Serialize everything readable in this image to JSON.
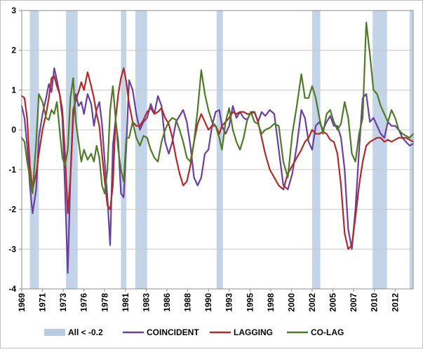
{
  "chart_data": {
    "type": "line",
    "title": "",
    "xlabel": "",
    "ylabel": "",
    "ylim": [
      -4,
      3
    ],
    "xlim": [
      1969.0,
      2012.4
    ],
    "y_ticks": [
      "3",
      "2",
      "1",
      "0",
      "-1",
      "-2",
      "-3",
      "-4"
    ],
    "x_ticks": [
      "1969",
      "1971",
      "1973",
      "1976",
      "1978",
      "1981",
      "1983",
      "1986",
      "1988",
      "1990",
      "1993",
      "1995",
      "1998",
      "2000",
      "2002",
      "2005",
      "2007",
      "2010",
      "2012"
    ],
    "x_tick_values": [
      1969.0,
      1971.3,
      1973.6,
      1975.9,
      1978.2,
      1980.5,
      1982.8,
      1985.1,
      1987.4,
      1989.7,
      1992.0,
      1994.3,
      1996.6,
      1998.9,
      2001.2,
      2003.5,
      2005.8,
      2008.1,
      2010.4
    ],
    "shading": {
      "name": "All < -0.2",
      "color": "#b8cce4",
      "periods": [
        [
          1969.9,
          1970.9
        ],
        [
          1973.9,
          1975.2
        ],
        [
          1980.0,
          1980.6
        ],
        [
          1981.6,
          1982.9
        ],
        [
          1990.6,
          1991.3
        ],
        [
          2001.2,
          2002.1
        ],
        [
          2007.9,
          2009.5
        ],
        [
          2012.0,
          2012.4
        ]
      ]
    },
    "legend_position": "bottom",
    "series": [
      {
        "name": "COINCIDENT",
        "color": "#6b3fa0",
        "x": [
          1969.0,
          1969.3,
          1969.6,
          1969.9,
          1970.2,
          1970.6,
          1970.9,
          1971.3,
          1971.7,
          1972.0,
          1972.3,
          1972.6,
          1972.9,
          1973.2,
          1973.5,
          1973.8,
          1974.1,
          1974.4,
          1974.7,
          1975.0,
          1975.3,
          1975.6,
          1975.9,
          1976.3,
          1976.7,
          1977.0,
          1977.3,
          1977.6,
          1977.9,
          1978.2,
          1978.5,
          1978.8,
          1979.1,
          1979.4,
          1979.7,
          1980.0,
          1980.3,
          1980.6,
          1980.9,
          1981.3,
          1981.7,
          1982.1,
          1982.5,
          1982.9,
          1983.3,
          1983.7,
          1984.1,
          1984.5,
          1984.9,
          1985.3,
          1985.7,
          1986.1,
          1986.5,
          1986.9,
          1987.3,
          1987.7,
          1988.1,
          1988.5,
          1988.9,
          1989.3,
          1989.7,
          1990.1,
          1990.5,
          1990.9,
          1991.2,
          1991.6,
          1992.0,
          1992.4,
          1992.8,
          1993.2,
          1993.6,
          1994.0,
          1994.4,
          1994.8,
          1995.2,
          1995.6,
          1996.0,
          1996.5,
          1997.0,
          1997.5,
          1998.0,
          1998.5,
          1999.0,
          1999.5,
          2000.0,
          2000.4,
          2000.8,
          2001.2,
          2001.6,
          2002.0,
          2002.4,
          2002.8,
          2003.2,
          2003.6,
          2004.0,
          2004.4,
          2004.8,
          2005.2,
          2005.6,
          2006.0,
          2006.4,
          2006.8,
          2007.2,
          2007.6,
          2008.0,
          2008.4,
          2008.8,
          2009.2,
          2009.6,
          2010.0,
          2010.4,
          2010.8,
          2011.2,
          2011.6,
          2012.0,
          2012.4
        ],
        "y": [
          0.6,
          0.3,
          -0.4,
          -1.4,
          -2.1,
          -1.5,
          -0.2,
          0.4,
          0.8,
          1.15,
          0.95,
          1.55,
          1.25,
          0.9,
          0.3,
          -1.5,
          -3.6,
          -1.2,
          0.3,
          0.9,
          0.6,
          0.7,
          0.4,
          0.9,
          0.65,
          0.1,
          0.5,
          0.7,
          0.15,
          -0.8,
          -1.7,
          -2.9,
          -0.4,
          0.25,
          -0.3,
          -1.6,
          -1.7,
          -0.4,
          1.25,
          1.0,
          0.4,
          0.0,
          0.2,
          0.3,
          0.65,
          0.4,
          0.85,
          0.6,
          -0.3,
          -0.6,
          -0.3,
          0.2,
          0.35,
          0.5,
          0.2,
          -0.4,
          -1.2,
          -1.4,
          -1.2,
          -0.6,
          -0.5,
          0.1,
          0.45,
          0.5,
          0.1,
          -0.1,
          0.1,
          0.6,
          0.3,
          0.45,
          0.3,
          0.25,
          0.45,
          0.45,
          0.2,
          0.45,
          0.35,
          0.5,
          0.4,
          -0.5,
          -1.4,
          -1.5,
          -1.1,
          -0.4,
          0.5,
          0.3,
          -0.3,
          -0.5,
          0.1,
          0.2,
          0.0,
          0.2,
          0.35,
          0.1,
          0.1,
          -0.2,
          -1.0,
          -2.5,
          -3.0,
          -2.0,
          -0.5,
          0.8,
          0.9,
          0.2,
          0.3,
          0.1,
          -0.1,
          -0.2,
          0.2,
          0.1,
          0.1,
          0.0,
          -0.2,
          -0.3,
          -0.4,
          -0.35
        ]
      },
      {
        "name": "LAGGING",
        "color": "#b02a2a",
        "x": [
          1969.0,
          1969.3,
          1969.6,
          1969.9,
          1970.2,
          1970.6,
          1970.9,
          1971.3,
          1971.7,
          1972.0,
          1972.3,
          1972.6,
          1972.9,
          1973.2,
          1973.5,
          1973.8,
          1974.1,
          1974.4,
          1974.7,
          1975.0,
          1975.3,
          1975.6,
          1975.9,
          1976.3,
          1976.7,
          1977.0,
          1977.3,
          1977.6,
          1977.9,
          1978.2,
          1978.5,
          1978.8,
          1979.1,
          1979.4,
          1979.7,
          1980.0,
          1980.3,
          1980.6,
          1980.9,
          1981.3,
          1981.7,
          1982.1,
          1982.5,
          1982.9,
          1983.3,
          1983.7,
          1984.1,
          1984.5,
          1984.9,
          1985.3,
          1985.7,
          1986.1,
          1986.5,
          1986.9,
          1987.3,
          1987.7,
          1988.1,
          1988.5,
          1988.9,
          1989.3,
          1989.7,
          1990.1,
          1990.5,
          1990.9,
          1991.2,
          1991.6,
          1992.0,
          1992.4,
          1992.8,
          1993.2,
          1993.6,
          1994.0,
          1994.4,
          1994.8,
          1995.2,
          1995.6,
          1996.0,
          1996.5,
          1997.0,
          1997.5,
          1998.0,
          1998.5,
          1999.0,
          1999.5,
          2000.0,
          2000.4,
          2000.8,
          2001.2,
          2001.6,
          2002.0,
          2002.4,
          2002.8,
          2003.2,
          2003.6,
          2004.0,
          2004.4,
          2004.8,
          2005.2,
          2005.6,
          2006.0,
          2006.4,
          2006.8,
          2007.2,
          2007.6,
          2008.0,
          2008.4,
          2008.8,
          2009.2,
          2009.6,
          2010.0,
          2010.4,
          2010.8,
          2011.2,
          2011.6,
          2012.0,
          2012.4
        ],
        "y": [
          0.85,
          0.8,
          0.3,
          -0.9,
          -1.5,
          -1.1,
          -0.6,
          0.0,
          0.4,
          0.8,
          1.3,
          1.35,
          1.1,
          0.9,
          0.5,
          -0.6,
          -2.1,
          -1.2,
          0.5,
          0.75,
          0.95,
          1.2,
          1.0,
          1.45,
          1.1,
          0.8,
          0.4,
          0.1,
          -0.6,
          -1.3,
          -1.9,
          -2.0,
          -1.4,
          0.25,
          0.9,
          1.3,
          1.55,
          1.2,
          0.65,
          0.2,
          0.1,
          0.1,
          0.25,
          0.45,
          0.55,
          0.4,
          0.45,
          0.55,
          0.3,
          0.15,
          -0.2,
          -0.7,
          -1.1,
          -1.4,
          -1.3,
          -0.9,
          -0.3,
          0.15,
          0.4,
          0.2,
          0.0,
          0.1,
          0.1,
          -0.1,
          0.1,
          0.2,
          0.3,
          0.45,
          0.4,
          0.45,
          0.45,
          0.4,
          0.4,
          0.45,
          0.2,
          -0.2,
          -0.6,
          -1.0,
          -1.2,
          -1.4,
          -1.5,
          -1.1,
          -0.9,
          -0.7,
          -0.5,
          -0.3,
          -0.2,
          0.0,
          -0.1,
          -0.1,
          -0.05,
          -0.1,
          -0.25,
          -0.3,
          -0.6,
          -1.4,
          -2.6,
          -3.0,
          -2.9,
          -2.2,
          -1.4,
          -0.8,
          -0.4,
          -0.3,
          -0.25,
          -0.2,
          -0.2,
          -0.3,
          -0.25,
          -0.3,
          -0.25,
          -0.2,
          -0.2,
          -0.2,
          -0.25,
          -0.3
        ]
      },
      {
        "name": "CO-LAG",
        "color": "#4f7a28",
        "x": [
          1969.0,
          1969.3,
          1969.6,
          1969.9,
          1970.2,
          1970.6,
          1970.9,
          1971.3,
          1971.7,
          1972.0,
          1972.3,
          1972.6,
          1972.9,
          1973.2,
          1973.5,
          1973.8,
          1974.1,
          1974.4,
          1974.7,
          1975.0,
          1975.3,
          1975.6,
          1975.9,
          1976.3,
          1976.7,
          1977.0,
          1977.3,
          1977.6,
          1977.9,
          1978.2,
          1978.5,
          1978.8,
          1979.1,
          1979.4,
          1979.7,
          1980.0,
          1980.3,
          1980.6,
          1980.9,
          1981.3,
          1981.7,
          1982.1,
          1982.5,
          1982.9,
          1983.3,
          1983.7,
          1984.1,
          1984.5,
          1984.9,
          1985.3,
          1985.7,
          1986.1,
          1986.5,
          1986.9,
          1987.3,
          1987.7,
          1988.1,
          1988.5,
          1988.9,
          1989.3,
          1989.7,
          1990.1,
          1990.5,
          1990.9,
          1991.2,
          1991.6,
          1992.0,
          1992.4,
          1992.8,
          1993.2,
          1993.6,
          1994.0,
          1994.4,
          1994.8,
          1995.2,
          1995.6,
          1996.0,
          1996.5,
          1997.0,
          1997.5,
          1998.0,
          1998.5,
          1999.0,
          1999.5,
          2000.0,
          2000.4,
          2000.8,
          2001.2,
          2001.6,
          2002.0,
          2002.4,
          2002.8,
          2003.2,
          2003.6,
          2004.0,
          2004.4,
          2004.8,
          2005.2,
          2005.6,
          2006.0,
          2006.4,
          2006.8,
          2007.2,
          2007.6,
          2008.0,
          2008.4,
          2008.8,
          2009.2,
          2009.6,
          2010.0,
          2010.4,
          2010.8,
          2011.2,
          2011.6,
          2012.0,
          2012.4
        ],
        "y": [
          -0.2,
          -0.3,
          -0.8,
          -1.2,
          -1.6,
          -0.3,
          0.9,
          0.7,
          0.3,
          0.25,
          0.5,
          0.4,
          0.7,
          0.0,
          -0.7,
          -0.9,
          -0.5,
          0.8,
          1.3,
          0.2,
          -0.3,
          -0.8,
          -0.5,
          -0.75,
          -0.6,
          -0.8,
          -0.4,
          -0.7,
          -1.4,
          -1.6,
          -1.0,
          0.5,
          1.1,
          0.3,
          -0.5,
          -1.0,
          -1.3,
          -0.2,
          -0.2,
          0.2,
          -0.2,
          -0.4,
          -0.15,
          -0.2,
          -0.5,
          -0.7,
          -0.8,
          -0.3,
          0.0,
          0.2,
          0.3,
          0.25,
          0.0,
          -0.3,
          -0.7,
          -0.8,
          -0.3,
          0.5,
          1.5,
          0.9,
          0.5,
          0.2,
          0.1,
          -0.2,
          -0.5,
          0.2,
          0.55,
          0.0,
          -0.3,
          -0.5,
          -0.2,
          0.25,
          0.45,
          0.2,
          0.15,
          -0.1,
          0.0,
          0.05,
          0.15,
          0.1,
          -0.8,
          -1.2,
          -0.1,
          0.6,
          1.4,
          0.8,
          0.8,
          1.1,
          0.8,
          0.3,
          -0.1,
          0.4,
          0.5,
          0.2,
          0.0,
          0.15,
          0.7,
          0.3,
          -0.6,
          -0.8,
          -0.1,
          0.3,
          2.7,
          1.9,
          1.0,
          0.9,
          0.6,
          0.4,
          0.2,
          0.5,
          0.3,
          0.0,
          -0.1,
          -0.15,
          -0.2,
          -0.1
        ]
      }
    ]
  }
}
